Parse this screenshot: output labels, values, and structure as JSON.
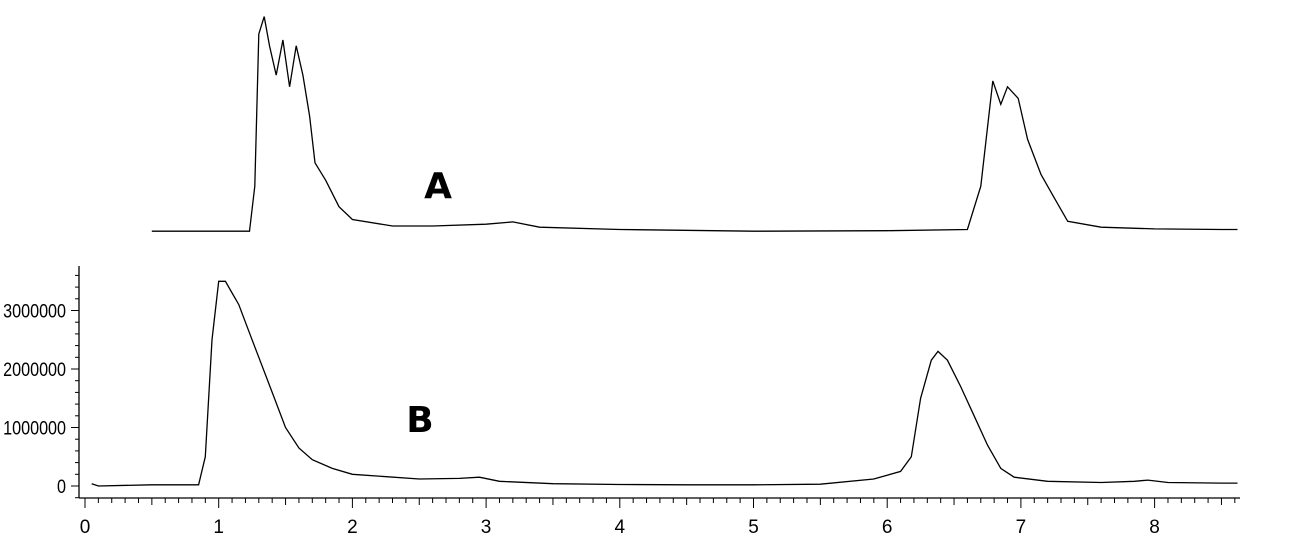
{
  "chart_data": {
    "type": "line",
    "xlim": [
      0,
      8.65
    ],
    "ylim": [
      -200000,
      3800000
    ],
    "x_ticks": [
      0,
      1,
      2,
      3,
      4,
      5,
      6,
      7,
      8
    ],
    "y_ticks": [
      0,
      1000000,
      2000000,
      3000000
    ],
    "grid": false,
    "series": [
      {
        "name": "A",
        "color": "#000000",
        "values": [
          [
            0.5,
            30000
          ],
          [
            0.8,
            30000
          ],
          [
            1.23,
            30000
          ],
          [
            1.27,
            800000
          ],
          [
            1.3,
            3400000
          ],
          [
            1.34,
            3700000
          ],
          [
            1.38,
            3200000
          ],
          [
            1.43,
            2700000
          ],
          [
            1.48,
            3300000
          ],
          [
            1.53,
            2500000
          ],
          [
            1.58,
            3200000
          ],
          [
            1.63,
            2700000
          ],
          [
            1.68,
            2000000
          ],
          [
            1.72,
            1200000
          ],
          [
            1.8,
            900000
          ],
          [
            1.9,
            450000
          ],
          [
            2.0,
            230000
          ],
          [
            2.3,
            120000
          ],
          [
            2.6,
            120000
          ],
          [
            3.0,
            150000
          ],
          [
            3.2,
            190000
          ],
          [
            3.4,
            100000
          ],
          [
            4.0,
            60000
          ],
          [
            5.0,
            30000
          ],
          [
            6.0,
            40000
          ],
          [
            6.6,
            60000
          ],
          [
            6.7,
            800000
          ],
          [
            6.79,
            2600000
          ],
          [
            6.85,
            2200000
          ],
          [
            6.9,
            2500000
          ],
          [
            6.98,
            2300000
          ],
          [
            7.05,
            1600000
          ],
          [
            7.15,
            1000000
          ],
          [
            7.25,
            600000
          ],
          [
            7.35,
            200000
          ],
          [
            7.6,
            100000
          ],
          [
            8.0,
            70000
          ],
          [
            8.5,
            60000
          ],
          [
            8.62,
            60000
          ]
        ]
      },
      {
        "name": "B",
        "color": "#000000",
        "values": [
          [
            0.05,
            40000
          ],
          [
            0.1,
            0
          ],
          [
            0.5,
            20000
          ],
          [
            0.85,
            20000
          ],
          [
            0.9,
            500000
          ],
          [
            0.95,
            2500000
          ],
          [
            1.0,
            3500000
          ],
          [
            1.05,
            3500000
          ],
          [
            1.1,
            3300000
          ],
          [
            1.15,
            3100000
          ],
          [
            1.2,
            2800000
          ],
          [
            1.25,
            2500000
          ],
          [
            1.3,
            2200000
          ],
          [
            1.4,
            1600000
          ],
          [
            1.5,
            1000000
          ],
          [
            1.6,
            650000
          ],
          [
            1.7,
            450000
          ],
          [
            1.85,
            300000
          ],
          [
            2.0,
            200000
          ],
          [
            2.5,
            120000
          ],
          [
            2.8,
            130000
          ],
          [
            2.95,
            150000
          ],
          [
            3.1,
            80000
          ],
          [
            3.5,
            40000
          ],
          [
            4.0,
            25000
          ],
          [
            4.5,
            20000
          ],
          [
            5.0,
            20000
          ],
          [
            5.5,
            30000
          ],
          [
            5.9,
            120000
          ],
          [
            6.1,
            250000
          ],
          [
            6.18,
            500000
          ],
          [
            6.25,
            1500000
          ],
          [
            6.33,
            2150000
          ],
          [
            6.38,
            2300000
          ],
          [
            6.45,
            2150000
          ],
          [
            6.55,
            1700000
          ],
          [
            6.65,
            1200000
          ],
          [
            6.75,
            700000
          ],
          [
            6.85,
            300000
          ],
          [
            6.95,
            150000
          ],
          [
            7.2,
            80000
          ],
          [
            7.6,
            60000
          ],
          [
            7.85,
            80000
          ],
          [
            7.95,
            100000
          ],
          [
            8.1,
            60000
          ],
          [
            8.5,
            50000
          ],
          [
            8.62,
            50000
          ]
        ]
      }
    ]
  }
}
